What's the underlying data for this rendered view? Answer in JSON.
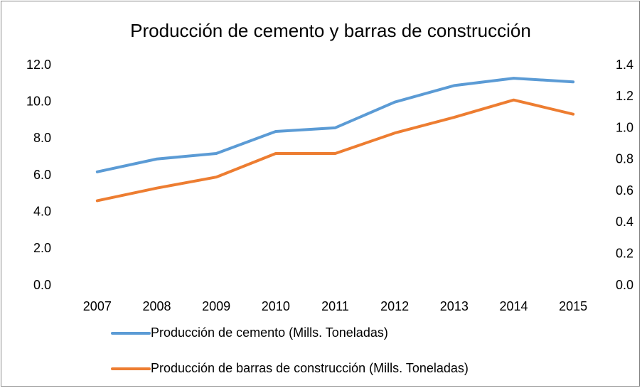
{
  "chart_data": {
    "type": "line",
    "title": "Producción de cemento y barras de construcción",
    "categories": [
      "2007",
      "2008",
      "2009",
      "2010",
      "2011",
      "2012",
      "2013",
      "2014",
      "2015"
    ],
    "series": [
      {
        "name": "Producción de cemento (Mills. Toneladas)",
        "color": "#5b9bd5",
        "values": [
          6.2,
          6.9,
          7.2,
          8.4,
          8.6,
          10.0,
          10.9,
          11.3,
          11.1
        ]
      },
      {
        "name": "Producción de barras de construcción (Mills. Toneladas)",
        "color": "#ed7d31",
        "axis": "y2",
        "values": [
          0.54,
          0.62,
          0.69,
          0.84,
          0.84,
          0.97,
          1.07,
          1.18,
          1.09
        ]
      }
    ],
    "ylim": [
      0,
      12
    ],
    "yticks": [
      {
        "value": 0,
        "label": "0.0"
      },
      {
        "value": 2,
        "label": "2.0"
      },
      {
        "value": 4,
        "label": "4.0"
      },
      {
        "value": 6,
        "label": "6.0"
      },
      {
        "value": 8,
        "label": "8.0"
      },
      {
        "value": 10,
        "label": "10.0"
      },
      {
        "value": 12,
        "label": "12.0"
      }
    ],
    "y2lim": [
      0,
      1.4
    ],
    "y2ticks": [
      {
        "value": 0,
        "label": "0.0"
      },
      0.2,
      0.4,
      0.6,
      0.8,
      {
        "value": 1,
        "label": "1.0"
      },
      1.2,
      1.4
    ],
    "grid": false,
    "legend": "bottom"
  }
}
